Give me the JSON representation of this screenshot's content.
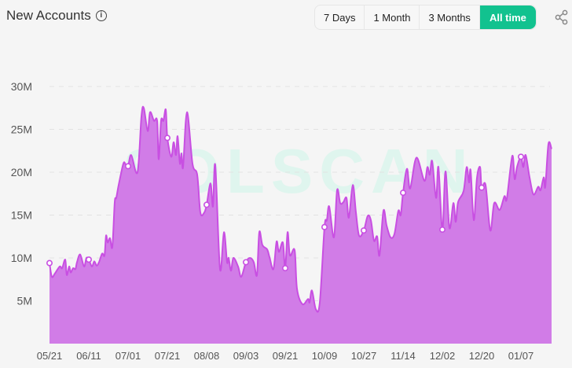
{
  "header": {
    "title": "New Accounts",
    "info_icon": "info-circle-icon",
    "share_icon": "share-icon",
    "ranges": [
      {
        "label": "7 Days",
        "active": false
      },
      {
        "label": "1 Month",
        "active": false
      },
      {
        "label": "3 Months",
        "active": false
      },
      {
        "label": "All time",
        "active": true
      }
    ]
  },
  "colors": {
    "accent": "#12c28f",
    "line": "#c84fe2",
    "fill": "#d17ce7",
    "watermark": "#dff5ee"
  },
  "watermark": "SOLSCAN",
  "chart_data": {
    "type": "area",
    "title": "New Accounts",
    "xlabel": "",
    "ylabel": "",
    "ylim": [
      0,
      30
    ],
    "y_unit": "M",
    "y_ticks": [
      5,
      10,
      15,
      20,
      25,
      30
    ],
    "y_tick_labels": [
      "5M",
      "10M",
      "15M",
      "20M",
      "25M",
      "30M"
    ],
    "x_ticks": [
      0,
      10,
      20,
      30,
      40,
      50,
      60,
      70,
      80,
      90,
      100,
      110,
      120
    ],
    "x_tick_labels": [
      "05/21",
      "06/11",
      "07/01",
      "07/21",
      "08/08",
      "09/03",
      "09/21",
      "10/09",
      "10/27",
      "11/14",
      "12/02",
      "12/20",
      "01/07"
    ],
    "xlim": [
      0,
      127.8
    ],
    "grid": true,
    "markers_at": [
      0,
      10,
      20,
      30,
      40,
      50,
      60,
      70,
      80,
      90,
      100,
      110,
      120
    ],
    "x": [
      0,
      0.6,
      1.4,
      2.6,
      3.2,
      4,
      4.4,
      5,
      5.4,
      6,
      6.6,
      7,
      7.8,
      8.8,
      9.4,
      10,
      10.8,
      11.4,
      12,
      12.6,
      13.4,
      14,
      14.4,
      14.8,
      15.4,
      16,
      16.6,
      17,
      17.6,
      18.8,
      19.4,
      20,
      20.8,
      22.4,
      23.4,
      24,
      25,
      25.6,
      26.6,
      27.4,
      27.8,
      28.4,
      29,
      29.6,
      30,
      31,
      31.6,
      32.2,
      32.6,
      33.2,
      33.6,
      34,
      35,
      36.4,
      37.6,
      38.4,
      39.4,
      40,
      41,
      41.6,
      42.2,
      43.4,
      44.4,
      45.2,
      45.6,
      46.2,
      46.8,
      48,
      48.8,
      50,
      51,
      52,
      52.8,
      53.4,
      54.2,
      55.4,
      56,
      57,
      57.8,
      58.4,
      59.4,
      60,
      60.6,
      61.2,
      62.4,
      63,
      64.4,
      65.8,
      66.2,
      66.8,
      67.8,
      68.8,
      70,
      70.6,
      71.2,
      72.4,
      73.2,
      74,
      74.8,
      75.6,
      76.2,
      77.2,
      78,
      78.8,
      80,
      81,
      81.8,
      82.6,
      83.4,
      84,
      85,
      85.8,
      86.8,
      87.8,
      88.8,
      89.4,
      90,
      91,
      91.8,
      93.4,
      95.4,
      96.2,
      96.8,
      97.4,
      98.4,
      99,
      100,
      100.8,
      101.8,
      102.8,
      103.4,
      104,
      105.4,
      106.2,
      106.8,
      107.2,
      108,
      108.8,
      109.6,
      110,
      111,
      112.2,
      113.2,
      114.6,
      115.8,
      116.4,
      117.8,
      118.4,
      119,
      120,
      120.6,
      121.2,
      122.2,
      123.2,
      124.4,
      125,
      125.8,
      126.2,
      127,
      127.8
    ],
    "values": [
      9.4,
      7.8,
      8.2,
      9.0,
      8.8,
      9.8,
      8.0,
      9.0,
      8.3,
      8.8,
      8.7,
      9.5,
      10.4,
      9.0,
      10.0,
      9.8,
      9.0,
      9.6,
      9.1,
      9.5,
      10.5,
      10.3,
      12.6,
      11.8,
      12.3,
      11.3,
      16.5,
      17.0,
      18.5,
      21.0,
      20.9,
      20.7,
      22.0,
      20.0,
      26.5,
      27.5,
      24.8,
      27.0,
      26.0,
      26.0,
      21.5,
      26.0,
      26.0,
      27.3,
      24.0,
      21.8,
      23.5,
      22.0,
      24.2,
      21.0,
      22.2,
      20.6,
      27.0,
      21.0,
      19.7,
      15.3,
      15.3,
      16.2,
      18.7,
      16.0,
      20.8,
      8.7,
      13.0,
      9.5,
      10.0,
      8.5,
      10.0,
      9.0,
      7.8,
      9.5,
      10.0,
      9.5,
      8.0,
      13.0,
      11.5,
      11.0,
      10.1,
      8.7,
      11.9,
      10.7,
      11.8,
      8.8,
      13.0,
      10.3,
      10.9,
      6.4,
      4.6,
      5.2,
      4.8,
      6.2,
      4.0,
      4.8,
      13.6,
      14.4,
      16.0,
      12.4,
      17.9,
      16.4,
      16.5,
      17.0,
      14.7,
      18.5,
      15.3,
      12.6,
      13.2,
      14.9,
      14.4,
      12.0,
      12.5,
      10.3,
      15.5,
      13.8,
      12.4,
      12.8,
      15.5,
      15.0,
      17.6,
      20.4,
      18.1,
      21.7,
      19.0,
      20.6,
      19.7,
      21.3,
      17.0,
      20.6,
      13.3,
      20.1,
      13.5,
      16.4,
      14.2,
      16.5,
      17.8,
      20.6,
      18.8,
      20.2,
      14.4,
      19.3,
      20.6,
      18.2,
      18.5,
      13.2,
      16.4,
      15.6,
      17.2,
      16.9,
      21.9,
      19.2,
      20.6,
      21.8,
      20.6,
      22.0,
      19.4,
      17.4,
      18.3,
      17.9,
      19.4,
      18.3,
      23.3,
      22.7
    ]
  }
}
